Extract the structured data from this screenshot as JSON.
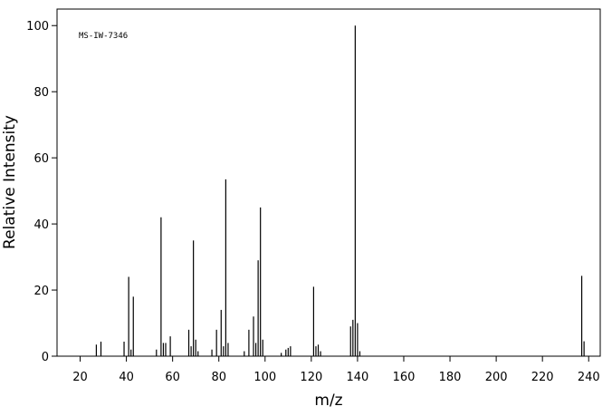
{
  "chart_data": {
    "type": "stem",
    "annotation": "MS-IW-7346",
    "xlabel": "m/z",
    "ylabel": "Relative Intensity",
    "x": [
      27,
      29,
      39,
      41,
      42,
      43,
      53,
      55,
      56,
      57,
      59,
      67,
      68,
      69,
      70,
      71,
      77,
      79,
      81,
      82,
      83,
      84,
      91,
      93,
      95,
      96,
      97,
      98,
      99,
      107,
      109,
      110,
      111,
      121,
      122,
      123,
      124,
      137,
      138,
      139,
      140,
      141,
      237,
      238
    ],
    "values": [
      3.5,
      4.4,
      4.4,
      24,
      2,
      18,
      2,
      42,
      4,
      4,
      6,
      8,
      3,
      35,
      5,
      1.5,
      2,
      8,
      14,
      3,
      53.5,
      4,
      1.5,
      8,
      12,
      4,
      29,
      45,
      5,
      1,
      2,
      2.5,
      3,
      21,
      3,
      3.5,
      1.5,
      9,
      11,
      100,
      10,
      1.5,
      24.3,
      4.5
    ],
    "color": "#000000",
    "xlim": [
      10,
      245
    ],
    "ylim": [
      0,
      105
    ],
    "xticks": [
      20,
      40,
      60,
      80,
      100,
      120,
      140,
      160,
      180,
      200,
      220,
      240
    ],
    "yticks": [
      0,
      20,
      40,
      60,
      80,
      100
    ]
  }
}
